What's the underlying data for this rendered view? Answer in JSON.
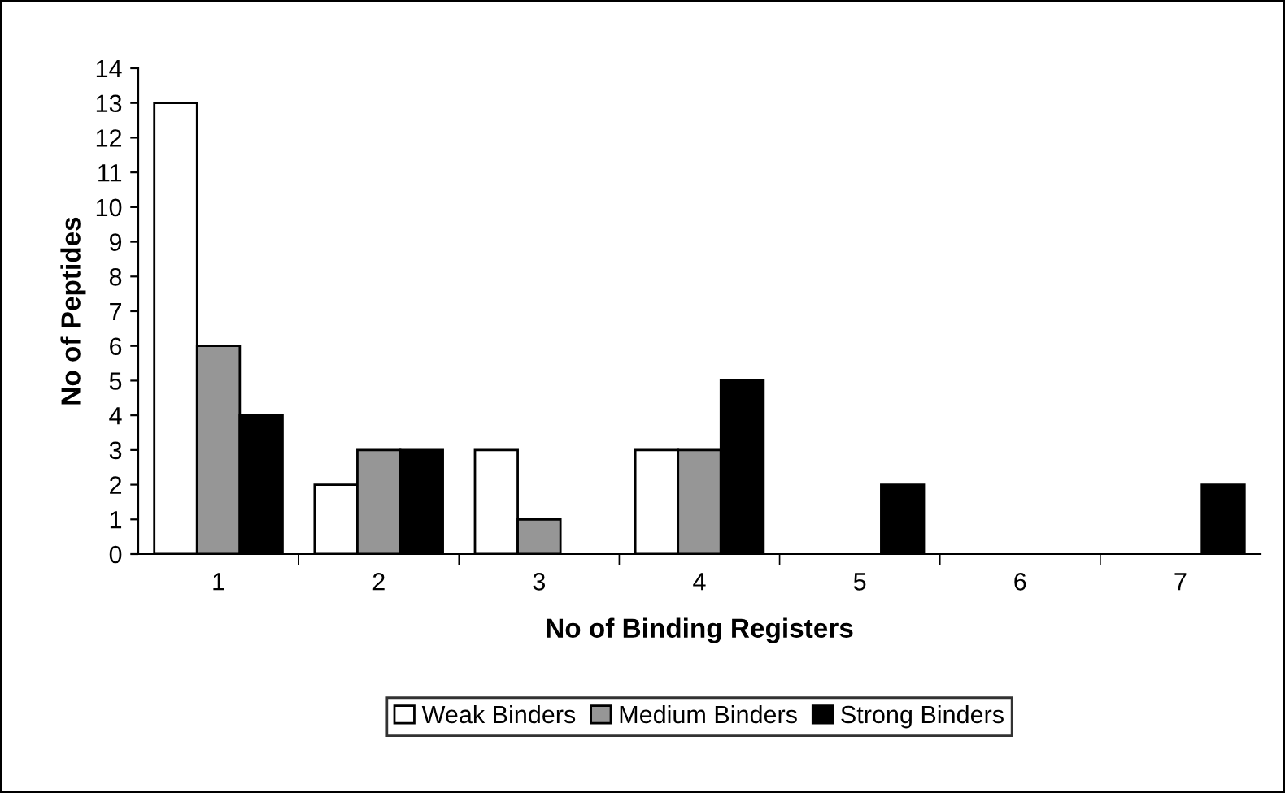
{
  "chart_data": {
    "type": "bar",
    "xlabel": "No of Binding Registers",
    "ylabel": "No of Peptides",
    "categories": [
      "1",
      "2",
      "3",
      "4",
      "5",
      "6",
      "7"
    ],
    "series": [
      {
        "name": "Weak Binders",
        "color": "#ffffff",
        "values": [
          13,
          2,
          3,
          3,
          0,
          0,
          0
        ]
      },
      {
        "name": "Medium Binders",
        "color": "#969696",
        "values": [
          6,
          3,
          1,
          3,
          0,
          0,
          0
        ]
      },
      {
        "name": "Strong Binders",
        "color": "#000000",
        "values": [
          4,
          3,
          0,
          5,
          2,
          0,
          2
        ]
      }
    ],
    "ylim": [
      0,
      14
    ],
    "yticks": [
      0,
      1,
      2,
      3,
      4,
      5,
      6,
      7,
      8,
      9,
      10,
      11,
      12,
      13,
      14
    ],
    "grid": false,
    "legend": "bottom"
  }
}
